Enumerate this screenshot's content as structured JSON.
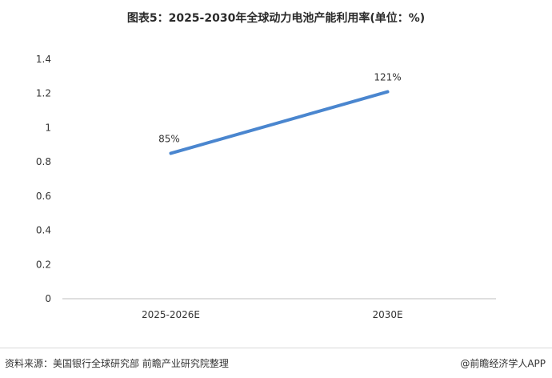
{
  "title": "图表5：2025-2030年全球动力电池产能利用率(单位：%)",
  "footer": {
    "source": "资料来源：美国银行全球研究部 前瞻产业研究院整理",
    "credit": "@前瞻经济学人APP"
  },
  "colors": {
    "line": "#4a86cf",
    "axis": "#bfbfbf"
  },
  "chart_data": {
    "type": "line",
    "title": "图表5：2025-2030年全球动力电池产能利用率(单位：%)",
    "categories": [
      "2025-2026E",
      "2030E"
    ],
    "series": [
      {
        "values": [
          0.85,
          1.21
        ],
        "labels": [
          "85%",
          "121%"
        ]
      }
    ],
    "yticks": [
      "0",
      "0.2",
      "0.4",
      "0.6",
      "0.8",
      "1",
      "1.2",
      "1.4"
    ],
    "ylim": [
      0,
      1.4
    ],
    "grid": false,
    "legend": "none"
  }
}
